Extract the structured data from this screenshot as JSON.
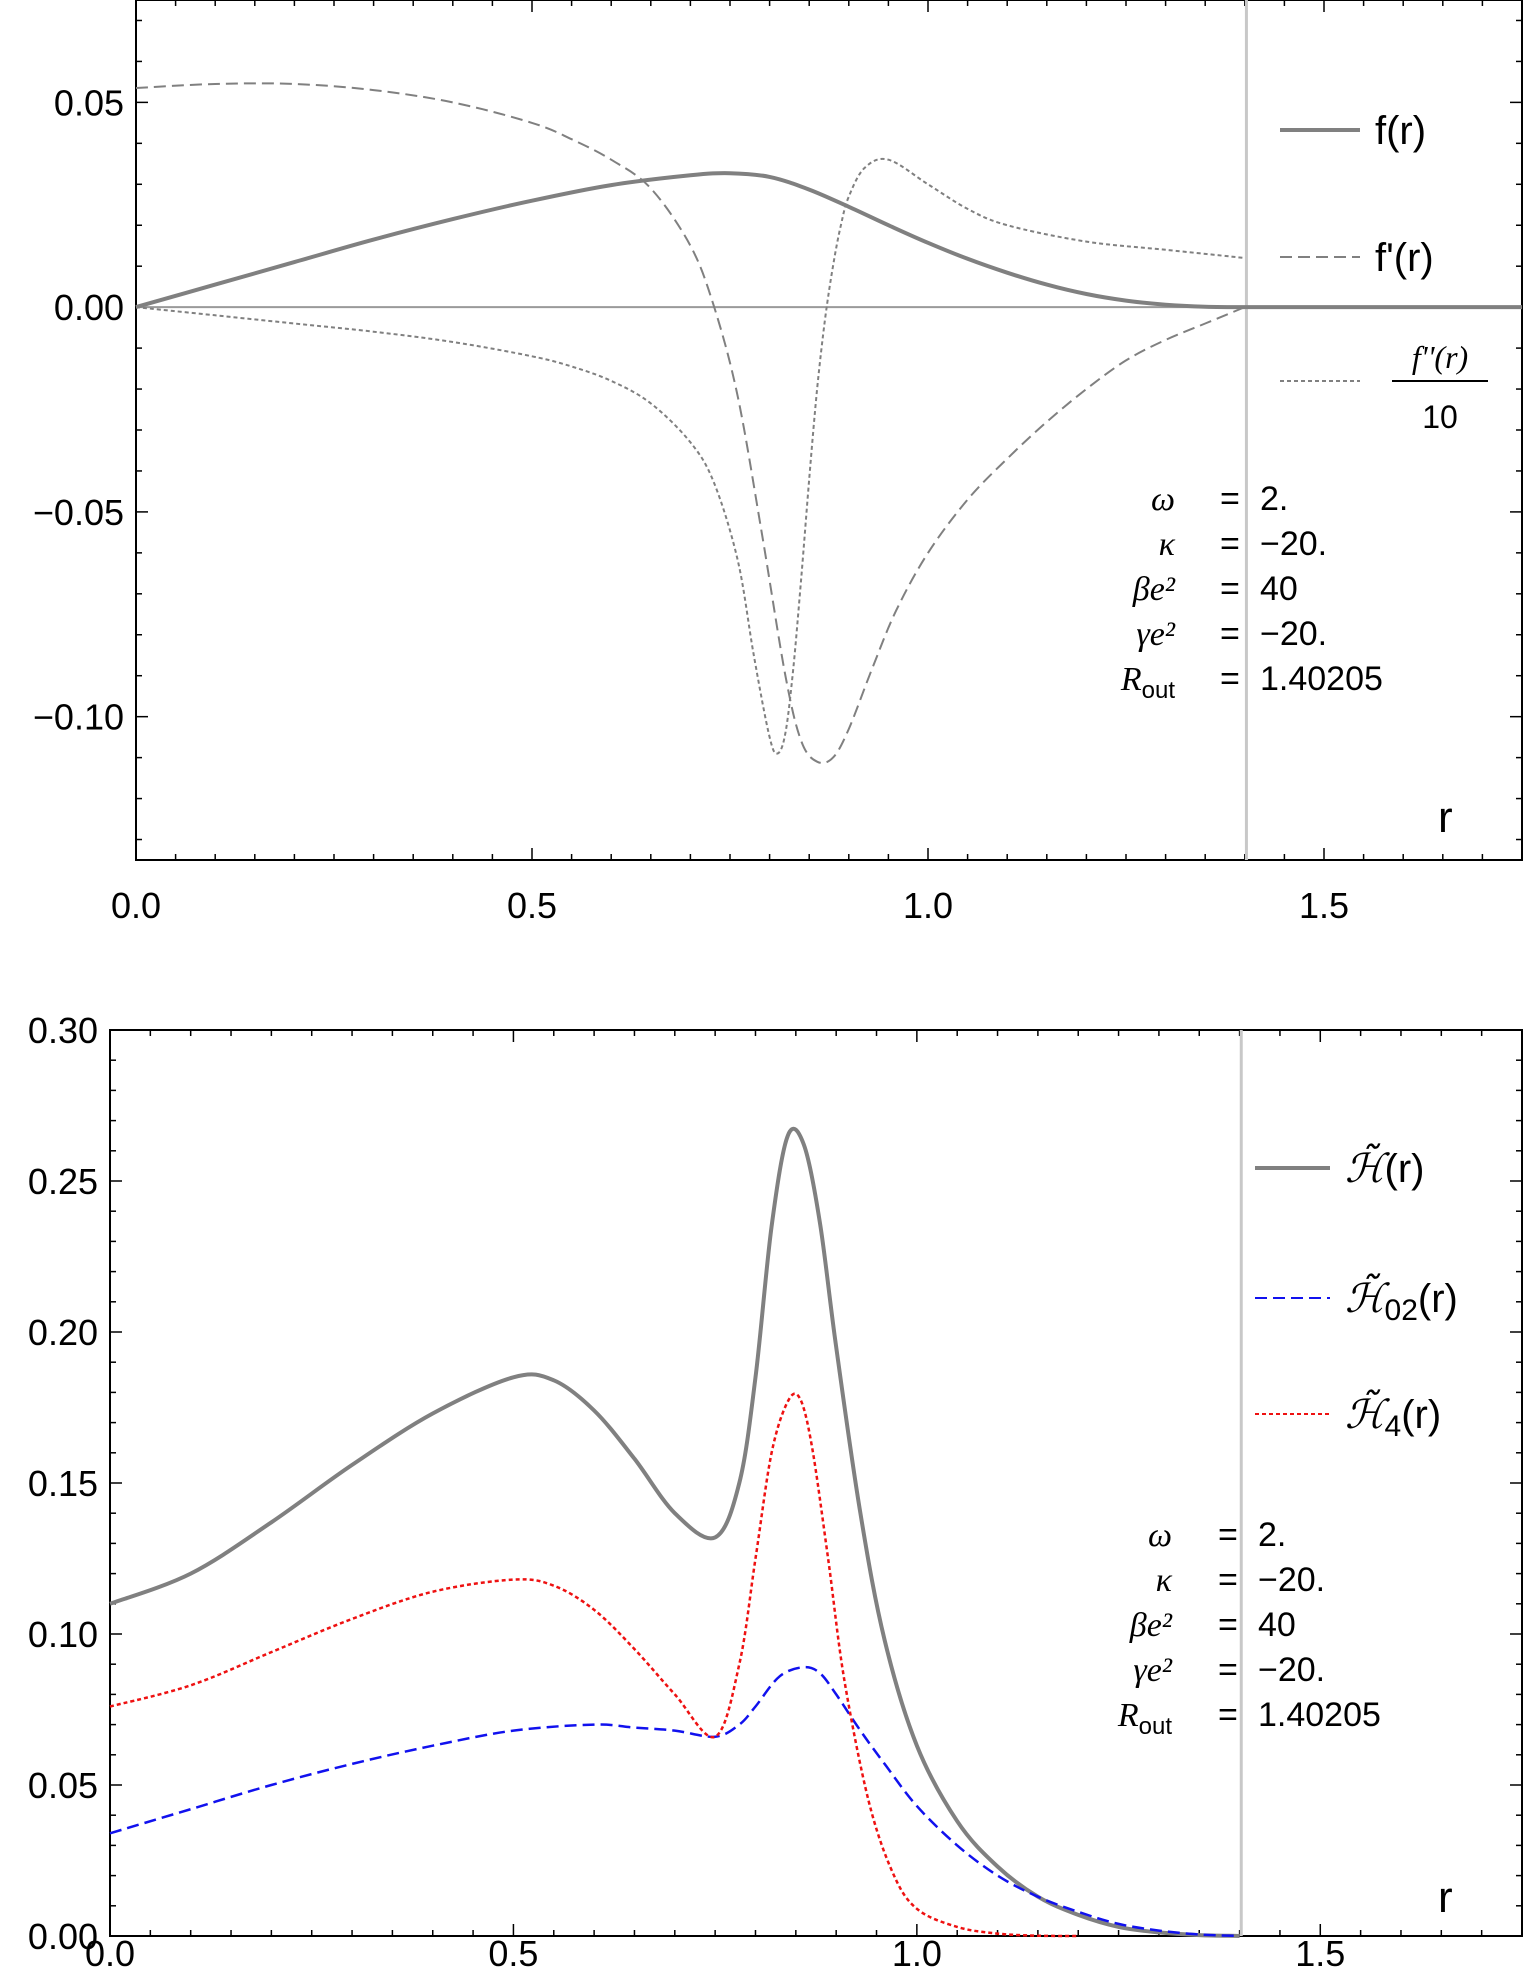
{
  "colors": {
    "gray": "#808080",
    "blue": "#1111ee",
    "red": "#ee1111",
    "frame": "#000000",
    "vline": "#c8c8c8",
    "zeroline": "#9a9a9a"
  },
  "chart_data": [
    {
      "type": "line",
      "title": "",
      "xlabel": "r",
      "ylabel": "",
      "xlim": [
        0.0,
        1.75
      ],
      "ylim": [
        -0.135,
        0.075
      ],
      "xticks": [
        "0.0",
        "0.5",
        "1.0",
        "1.5"
      ],
      "yticks": [
        "0.05",
        "0.00",
        "−0.05",
        "−0.10"
      ],
      "vertical_line_x": 1.40205,
      "legend": {
        "placement": "right",
        "entries": [
          "f(r)",
          "f'(r)",
          "f''(r)",
          "10"
        ]
      },
      "parameters": [
        {
          "name": "ω",
          "eq": "=",
          "value": "2."
        },
        {
          "name": "κ",
          "eq": "=",
          "value": "−20."
        },
        {
          "name": "βe²",
          "eq": "=",
          "value": "40"
        },
        {
          "name": "γe²",
          "eq": "=",
          "value": "−20."
        },
        {
          "name": "R",
          "sub": "out",
          "eq": "=",
          "value": "1.40205"
        }
      ],
      "series": [
        {
          "name": "f(r)",
          "style": "solid",
          "x": [
            0.0,
            0.1,
            0.2,
            0.3,
            0.4,
            0.5,
            0.6,
            0.7,
            0.75,
            0.8,
            0.85,
            0.9,
            0.95,
            1.0,
            1.05,
            1.1,
            1.15,
            1.2,
            1.25,
            1.3,
            1.35,
            1.4,
            1.45,
            1.5,
            1.6,
            1.75
          ],
          "values": [
            0.0,
            0.0055,
            0.011,
            0.0165,
            0.0215,
            0.026,
            0.0298,
            0.0322,
            0.0327,
            0.0318,
            0.0287,
            0.0245,
            0.02,
            0.0157,
            0.0118,
            0.0084,
            0.0055,
            0.0032,
            0.0016,
            0.0006,
            0.0001,
            0.0,
            0.0,
            0.0,
            0.0,
            0.0
          ]
        },
        {
          "name": "f'(r)",
          "style": "dashed",
          "x": [
            0.0,
            0.1,
            0.2,
            0.3,
            0.4,
            0.5,
            0.55,
            0.6,
            0.65,
            0.7,
            0.73,
            0.76,
            0.79,
            0.82,
            0.84,
            0.86,
            0.88,
            0.9,
            0.93,
            0.96,
            1.0,
            1.05,
            1.1,
            1.15,
            1.2,
            1.25,
            1.3,
            1.35,
            1.4
          ],
          "values": [
            0.0535,
            0.0545,
            0.0545,
            0.053,
            0.05,
            0.045,
            0.041,
            0.036,
            0.029,
            0.015,
            0.0,
            -0.022,
            -0.055,
            -0.09,
            -0.106,
            -0.111,
            -0.11,
            -0.103,
            -0.088,
            -0.074,
            -0.06,
            -0.047,
            -0.037,
            -0.028,
            -0.02,
            -0.013,
            -0.008,
            -0.004,
            0.0
          ]
        },
        {
          "name": "f''(r)/10",
          "style": "dotted",
          "x": [
            0.0,
            0.1,
            0.2,
            0.3,
            0.4,
            0.5,
            0.55,
            0.6,
            0.65,
            0.7,
            0.73,
            0.76,
            0.78,
            0.8,
            0.81,
            0.82,
            0.83,
            0.84,
            0.85,
            0.86,
            0.87,
            0.88,
            0.89,
            0.9,
            0.92,
            0.95,
            1.0,
            1.05,
            1.1,
            1.2,
            1.3,
            1.4
          ],
          "values": [
            0.0,
            -0.002,
            -0.004,
            -0.006,
            -0.0085,
            -0.012,
            -0.0145,
            -0.018,
            -0.0235,
            -0.033,
            -0.043,
            -0.062,
            -0.085,
            -0.105,
            -0.109,
            -0.104,
            -0.088,
            -0.066,
            -0.042,
            -0.02,
            -0.003,
            0.01,
            0.02,
            0.027,
            0.034,
            0.036,
            0.03,
            0.024,
            0.02,
            0.016,
            0.014,
            0.012
          ]
        }
      ]
    },
    {
      "type": "line",
      "title": "",
      "xlabel": "r",
      "ylabel": "",
      "xlim": [
        0.0,
        1.75
      ],
      "ylim": [
        0.0,
        0.3
      ],
      "xticks": [
        "0.0",
        "0.5",
        "1.0",
        "1.5"
      ],
      "yticks": [
        "0.30",
        "0.25",
        "0.20",
        "0.15",
        "0.10",
        "0.05",
        "0.00"
      ],
      "vertical_line_x": 1.40205,
      "legend": {
        "placement": "right",
        "entries": [
          "(r)",
          "02",
          "4"
        ],
        "symbol": "ℋ̃"
      },
      "parameters": [
        {
          "name": "ω",
          "eq": "=",
          "value": "2."
        },
        {
          "name": "κ",
          "eq": "=",
          "value": "−20."
        },
        {
          "name": "βe²",
          "eq": "=",
          "value": "40"
        },
        {
          "name": "γe²",
          "eq": "=",
          "value": "−20."
        },
        {
          "name": "R",
          "sub": "out",
          "eq": "=",
          "value": "1.40205"
        }
      ],
      "series": [
        {
          "name": "H(r)",
          "style": "solid",
          "color_key": "gray",
          "x": [
            0.0,
            0.1,
            0.2,
            0.3,
            0.4,
            0.5,
            0.55,
            0.6,
            0.65,
            0.7,
            0.75,
            0.78,
            0.8,
            0.82,
            0.84,
            0.86,
            0.88,
            0.9,
            0.93,
            0.96,
            1.0,
            1.05,
            1.1,
            1.15,
            1.2,
            1.25,
            1.3,
            1.35,
            1.4
          ],
          "values": [
            0.11,
            0.12,
            0.137,
            0.156,
            0.173,
            0.185,
            0.184,
            0.174,
            0.158,
            0.14,
            0.132,
            0.15,
            0.185,
            0.235,
            0.265,
            0.262,
            0.236,
            0.195,
            0.14,
            0.098,
            0.063,
            0.038,
            0.023,
            0.013,
            0.007,
            0.003,
            0.0012,
            0.0003,
            0.0
          ]
        },
        {
          "name": "H02(r)",
          "style": "dashed",
          "color_key": "blue",
          "x": [
            0.0,
            0.1,
            0.2,
            0.3,
            0.4,
            0.5,
            0.6,
            0.65,
            0.7,
            0.75,
            0.78,
            0.8,
            0.83,
            0.86,
            0.88,
            0.9,
            0.93,
            0.96,
            1.0,
            1.05,
            1.1,
            1.15,
            1.2,
            1.25,
            1.3,
            1.35,
            1.4
          ],
          "values": [
            0.034,
            0.042,
            0.05,
            0.057,
            0.063,
            0.068,
            0.07,
            0.069,
            0.068,
            0.066,
            0.07,
            0.076,
            0.086,
            0.089,
            0.087,
            0.08,
            0.068,
            0.057,
            0.043,
            0.03,
            0.02,
            0.013,
            0.008,
            0.004,
            0.0018,
            0.0005,
            0.0
          ]
        },
        {
          "name": "H4(r)",
          "style": "dotted",
          "color_key": "red",
          "x": [
            0.0,
            0.1,
            0.2,
            0.3,
            0.4,
            0.5,
            0.55,
            0.6,
            0.65,
            0.7,
            0.75,
            0.78,
            0.8,
            0.82,
            0.84,
            0.855,
            0.87,
            0.89,
            0.91,
            0.94,
            0.97,
            1.0,
            1.05,
            1.1,
            1.15,
            1.2
          ],
          "values": [
            0.076,
            0.083,
            0.094,
            0.105,
            0.114,
            0.118,
            0.116,
            0.108,
            0.095,
            0.08,
            0.066,
            0.09,
            0.125,
            0.16,
            0.177,
            0.178,
            0.162,
            0.125,
            0.085,
            0.045,
            0.021,
            0.009,
            0.003,
            0.0008,
            0.0001,
            0.0
          ]
        }
      ]
    }
  ]
}
